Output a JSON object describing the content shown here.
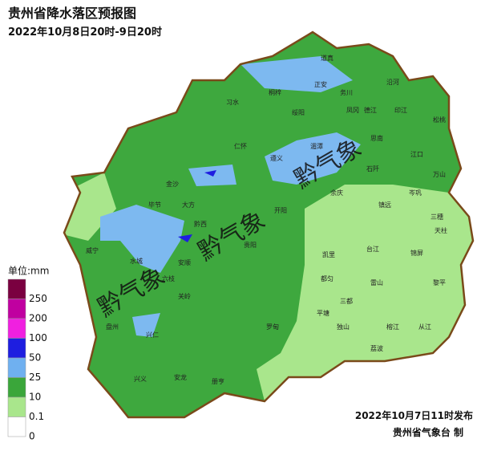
{
  "header": {
    "title": "贵州省降水落区预报图",
    "subtitle": "2022年10月8日20时-9日20时"
  },
  "legend": {
    "unit": "单位:mm",
    "labels": [
      250,
      200,
      100,
      50,
      25,
      10,
      0.1,
      0
    ]
  },
  "watermarks": [
    "黔气象",
    "黔气象",
    "黔气象"
  ],
  "places": [
    "道真",
    "正安",
    "务川",
    "沿河",
    "习水",
    "桐梓",
    "绥阳",
    "凤冈",
    "德江",
    "印江",
    "松桃",
    "仁怀",
    "遵义",
    "湄潭",
    "思南",
    "江口",
    "石阡",
    "万山",
    "金沙",
    "大方",
    "毕节",
    "黔西",
    "开阳",
    "余庆",
    "镇远",
    "岑巩",
    "三穗",
    "天柱",
    "威宁",
    "水城",
    "六枝",
    "安顺",
    "贵阳",
    "凯里",
    "台江",
    "锦屏",
    "都匀",
    "雷山",
    "榕江",
    "黎平",
    "盘州",
    "关岭",
    "罗甸",
    "平塘",
    "独山",
    "三都",
    "从江",
    "兴仁",
    "安龙",
    "册亨",
    "兴义",
    "荔波"
  ],
  "footer": {
    "issued": "2022年10月7日11时发布",
    "producer": "贵州省气象台 制"
  }
}
